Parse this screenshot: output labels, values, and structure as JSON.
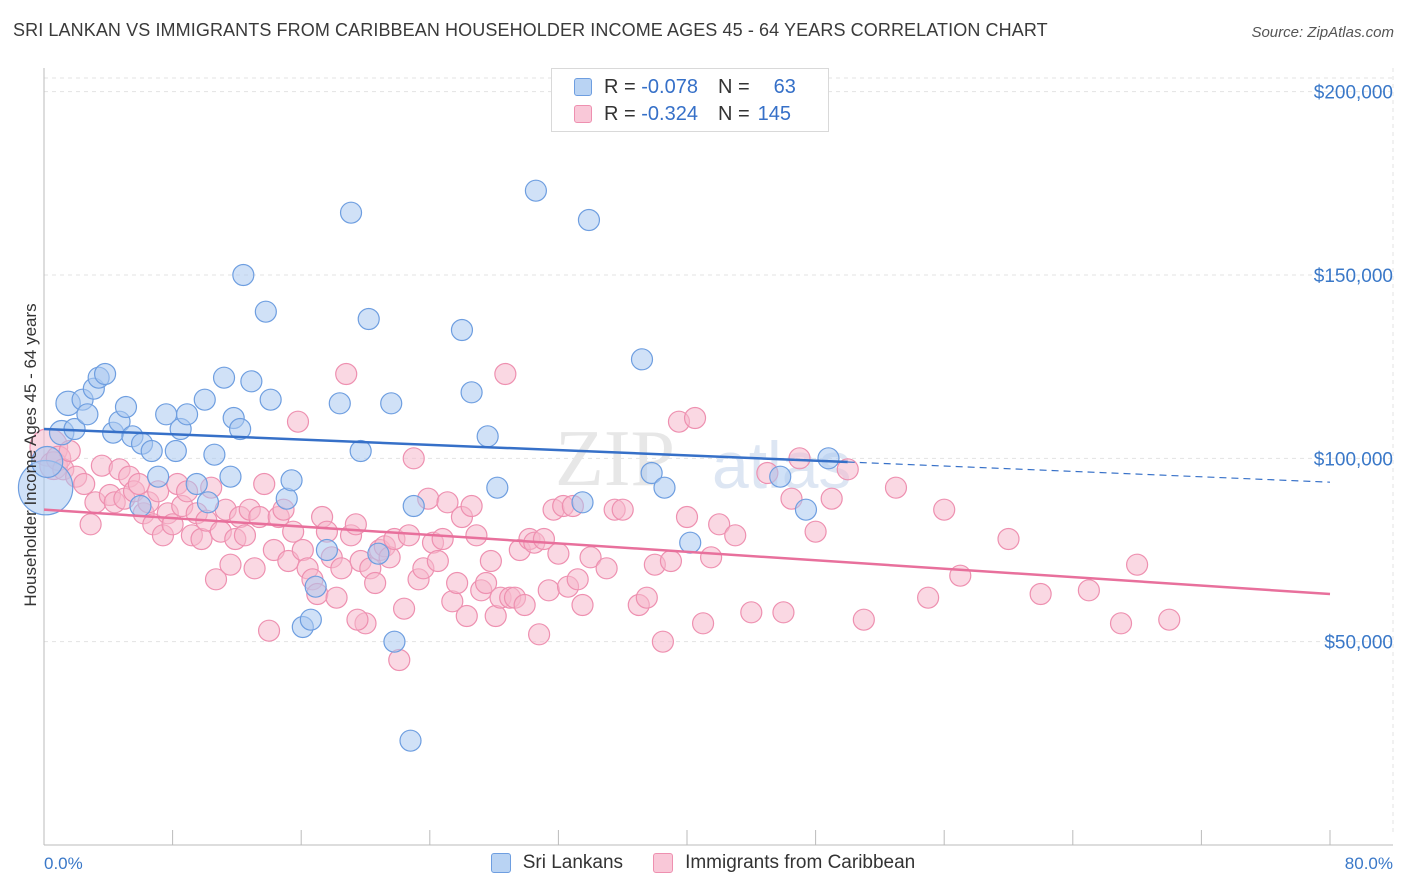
{
  "title": "SRI LANKAN VS IMMIGRANTS FROM CARIBBEAN HOUSEHOLDER INCOME AGES 45 - 64 YEARS CORRELATION CHART",
  "source": "Source: ZipAtlas.com",
  "watermark": {
    "zip": "ZIP",
    "atlas": "atlas"
  },
  "colors": {
    "blue": "#3670c8",
    "blue_fill": "#a9c8f0",
    "blue_stroke": "#6e9ee0",
    "pink": "#e8709c",
    "pink_fill": "#f6b8cc",
    "pink_stroke": "#ee90b0",
    "grid": "#e3e3e3",
    "axis_text": "#3a78c8"
  },
  "legend": {
    "rows": [
      {
        "r_label": "R =",
        "r_value": "-0.078",
        "n_label": "N =",
        "n_value": "63"
      },
      {
        "r_label": "R =",
        "r_value": "-0.324",
        "n_label": "N =",
        "n_value": "145"
      }
    ]
  },
  "bottom_legend": [
    "Sri Lankans",
    "Immigrants from Caribbean"
  ],
  "chart_data": {
    "type": "scatter",
    "title": "SRI LANKAN VS IMMIGRANTS FROM CARIBBEAN HOUSEHOLDER INCOME AGES 45 - 64 YEARS CORRELATION CHART",
    "xlabel": "",
    "ylabel": "Householder Income Ages 45 - 64 years",
    "xlim": [
      0,
      80
    ],
    "ylim": [
      0,
      210000
    ],
    "x_tick_labels": [
      "0.0%",
      "80.0%"
    ],
    "y_ticks": [
      50000,
      100000,
      150000,
      200000
    ],
    "y_tick_labels": [
      "$50,000",
      "$100,000",
      "$150,000",
      "$200,000"
    ],
    "grid": true,
    "series": [
      {
        "name": "Sri Lankans",
        "R": -0.078,
        "N": 63,
        "trend": {
          "x_start": 0,
          "y_start": 108000,
          "x_solid_end": 50,
          "y_solid_end": 99000,
          "x_end": 80,
          "y_end": 93500
        },
        "points": [
          [
            0.1,
            92000,
            32
          ],
          [
            0.2,
            99000,
            18
          ],
          [
            1.1,
            107000,
            14
          ],
          [
            1.5,
            115000,
            14
          ],
          [
            1.9,
            108000,
            12
          ],
          [
            2.4,
            116000,
            12
          ],
          [
            2.7,
            112000,
            12
          ],
          [
            3.1,
            119000,
            12
          ],
          [
            3.4,
            122000,
            12
          ],
          [
            3.8,
            123000,
            12
          ],
          [
            4.3,
            107000,
            12
          ],
          [
            4.7,
            110000,
            12
          ],
          [
            5.1,
            114000,
            12
          ],
          [
            5.5,
            106000,
            12
          ],
          [
            6.1,
            104000,
            12
          ],
          [
            6.7,
            102000,
            12
          ],
          [
            7.1,
            95000,
            12
          ],
          [
            7.6,
            112000,
            12
          ],
          [
            8.2,
            102000,
            12
          ],
          [
            8.5,
            108000,
            12
          ],
          [
            8.9,
            112000,
            12
          ],
          [
            9.5,
            93000,
            12
          ],
          [
            10.0,
            116000,
            12
          ],
          [
            10.2,
            88000,
            12
          ],
          [
            10.6,
            101000,
            12
          ],
          [
            11.2,
            122000,
            12
          ],
          [
            11.6,
            95000,
            12
          ],
          [
            11.8,
            111000,
            12
          ],
          [
            12.2,
            108000,
            12
          ],
          [
            12.4,
            150000,
            12
          ],
          [
            12.9,
            121000,
            12
          ],
          [
            13.8,
            140000,
            12
          ],
          [
            14.1,
            116000,
            12
          ],
          [
            15.1,
            89000,
            12
          ],
          [
            15.4,
            94000,
            12
          ],
          [
            16.1,
            54000,
            12
          ],
          [
            16.6,
            56000,
            12
          ],
          [
            16.9,
            65000,
            12
          ],
          [
            17.6,
            75000,
            12
          ],
          [
            18.4,
            115000,
            12
          ],
          [
            19.1,
            167000,
            12
          ],
          [
            19.7,
            102000,
            12
          ],
          [
            20.2,
            138000,
            12
          ],
          [
            20.8,
            74000,
            12
          ],
          [
            21.6,
            115000,
            12
          ],
          [
            21.8,
            50000,
            12
          ],
          [
            22.8,
            23000,
            12
          ],
          [
            23.0,
            87000,
            12
          ],
          [
            26.0,
            135000,
            12
          ],
          [
            26.6,
            118000,
            12
          ],
          [
            27.6,
            106000,
            12
          ],
          [
            28.2,
            92000,
            12
          ],
          [
            30.6,
            173000,
            12
          ],
          [
            33.9,
            165000,
            12
          ],
          [
            33.5,
            88000,
            12
          ],
          [
            37.2,
            127000,
            12
          ],
          [
            37.8,
            96000,
            12
          ],
          [
            38.6,
            92000,
            12
          ],
          [
            40.2,
            77000,
            12
          ],
          [
            45.8,
            95000,
            12
          ],
          [
            47.4,
            86000,
            12
          ],
          [
            48.8,
            100000,
            12
          ],
          [
            6.0,
            87000,
            12
          ]
        ]
      },
      {
        "name": "Immigrants from Caribbean",
        "R": -0.324,
        "N": 145,
        "trend": {
          "x_start": 0,
          "y_start": 86000,
          "x_end": 80,
          "y_end": 63000
        },
        "points": [
          [
            0.3,
            103000,
            22
          ],
          [
            0.6,
            98000,
            16
          ],
          [
            0.9,
            100000,
            14
          ],
          [
            1.2,
            97000,
            12
          ],
          [
            1.6,
            102000,
            12
          ],
          [
            2.0,
            95000,
            12
          ],
          [
            2.5,
            93000,
            12
          ],
          [
            2.9,
            82000,
            12
          ],
          [
            3.2,
            88000,
            12
          ],
          [
            3.6,
            98000,
            12
          ],
          [
            4.1,
            90000,
            12
          ],
          [
            4.4,
            88000,
            12
          ],
          [
            4.7,
            97000,
            12
          ],
          [
            5.0,
            89000,
            12
          ],
          [
            5.3,
            95000,
            12
          ],
          [
            5.6,
            91000,
            12
          ],
          [
            5.9,
            93000,
            12
          ],
          [
            6.2,
            85000,
            12
          ],
          [
            6.5,
            88000,
            12
          ],
          [
            6.8,
            82000,
            12
          ],
          [
            7.1,
            91000,
            12
          ],
          [
            7.4,
            79000,
            12
          ],
          [
            7.7,
            85000,
            12
          ],
          [
            8.0,
            82000,
            12
          ],
          [
            8.3,
            93000,
            12
          ],
          [
            8.6,
            87000,
            12
          ],
          [
            8.9,
            91000,
            12
          ],
          [
            9.2,
            79000,
            12
          ],
          [
            9.5,
            85000,
            12
          ],
          [
            9.8,
            78000,
            12
          ],
          [
            10.1,
            83000,
            12
          ],
          [
            10.4,
            92000,
            12
          ],
          [
            10.7,
            67000,
            12
          ],
          [
            11.0,
            80000,
            12
          ],
          [
            11.3,
            86000,
            12
          ],
          [
            11.6,
            71000,
            12
          ],
          [
            11.9,
            78000,
            12
          ],
          [
            12.2,
            84000,
            12
          ],
          [
            12.5,
            79000,
            12
          ],
          [
            12.8,
            86000,
            12
          ],
          [
            13.1,
            70000,
            12
          ],
          [
            13.4,
            84000,
            12
          ],
          [
            13.7,
            93000,
            12
          ],
          [
            14.0,
            53000,
            12
          ],
          [
            14.3,
            75000,
            12
          ],
          [
            14.6,
            84000,
            12
          ],
          [
            14.9,
            86000,
            12
          ],
          [
            15.2,
            72000,
            12
          ],
          [
            15.5,
            80000,
            12
          ],
          [
            15.8,
            110000,
            12
          ],
          [
            16.1,
            75000,
            12
          ],
          [
            16.4,
            70000,
            12
          ],
          [
            16.7,
            67000,
            12
          ],
          [
            17.0,
            63000,
            12
          ],
          [
            17.3,
            84000,
            12
          ],
          [
            17.6,
            80000,
            12
          ],
          [
            17.9,
            73000,
            12
          ],
          [
            18.2,
            62000,
            12
          ],
          [
            18.5,
            70000,
            12
          ],
          [
            18.8,
            123000,
            12
          ],
          [
            19.1,
            79000,
            12
          ],
          [
            19.4,
            82000,
            12
          ],
          [
            19.7,
            72000,
            12
          ],
          [
            20.0,
            55000,
            12
          ],
          [
            20.3,
            70000,
            12
          ],
          [
            20.6,
            66000,
            12
          ],
          [
            20.9,
            75000,
            12
          ],
          [
            21.2,
            76000,
            12
          ],
          [
            21.5,
            73000,
            12
          ],
          [
            21.8,
            78000,
            12
          ],
          [
            22.1,
            45000,
            12
          ],
          [
            22.4,
            59000,
            12
          ],
          [
            22.7,
            79000,
            12
          ],
          [
            23.0,
            100000,
            12
          ],
          [
            23.3,
            67000,
            12
          ],
          [
            23.6,
            70000,
            12
          ],
          [
            23.9,
            89000,
            12
          ],
          [
            24.2,
            77000,
            12
          ],
          [
            24.5,
            72000,
            12
          ],
          [
            24.8,
            78000,
            12
          ],
          [
            25.1,
            88000,
            12
          ],
          [
            25.4,
            61000,
            12
          ],
          [
            25.7,
            66000,
            12
          ],
          [
            26.0,
            84000,
            12
          ],
          [
            26.3,
            57000,
            12
          ],
          [
            26.6,
            87000,
            12
          ],
          [
            26.9,
            79000,
            12
          ],
          [
            27.2,
            64000,
            12
          ],
          [
            27.5,
            66000,
            12
          ],
          [
            27.8,
            72000,
            12
          ],
          [
            28.1,
            57000,
            12
          ],
          [
            28.4,
            62000,
            12
          ],
          [
            28.7,
            123000,
            12
          ],
          [
            29.0,
            62000,
            12
          ],
          [
            29.3,
            62000,
            12
          ],
          [
            29.6,
            75000,
            12
          ],
          [
            29.9,
            60000,
            12
          ],
          [
            30.2,
            78000,
            12
          ],
          [
            30.5,
            77000,
            12
          ],
          [
            30.8,
            52000,
            12
          ],
          [
            31.1,
            78000,
            12
          ],
          [
            31.4,
            64000,
            12
          ],
          [
            31.7,
            86000,
            12
          ],
          [
            32.0,
            74000,
            12
          ],
          [
            32.3,
            87000,
            12
          ],
          [
            32.6,
            65000,
            12
          ],
          [
            32.9,
            87000,
            12
          ],
          [
            33.2,
            67000,
            12
          ],
          [
            33.5,
            60000,
            12
          ],
          [
            34.0,
            73000,
            12
          ],
          [
            35.0,
            70000,
            12
          ],
          [
            35.5,
            86000,
            12
          ],
          [
            36.0,
            86000,
            12
          ],
          [
            37.0,
            60000,
            12
          ],
          [
            37.5,
            62000,
            12
          ],
          [
            38.0,
            71000,
            12
          ],
          [
            38.5,
            50000,
            12
          ],
          [
            39.0,
            72000,
            12
          ],
          [
            39.5,
            110000,
            12
          ],
          [
            40.0,
            84000,
            12
          ],
          [
            40.5,
            111000,
            12
          ],
          [
            41.0,
            55000,
            12
          ],
          [
            41.5,
            73000,
            12
          ],
          [
            42.0,
            82000,
            12
          ],
          [
            43.0,
            79000,
            12
          ],
          [
            44.0,
            58000,
            12
          ],
          [
            45.0,
            96000,
            12
          ],
          [
            46.0,
            58000,
            12
          ],
          [
            47.0,
            100000,
            12
          ],
          [
            48.0,
            80000,
            12
          ],
          [
            49.0,
            89000,
            12
          ],
          [
            50.0,
            97000,
            12
          ],
          [
            51.0,
            56000,
            12
          ],
          [
            53.0,
            92000,
            12
          ],
          [
            55.0,
            62000,
            12
          ],
          [
            56.0,
            86000,
            12
          ],
          [
            57.0,
            68000,
            12
          ],
          [
            60.0,
            78000,
            12
          ],
          [
            62.0,
            63000,
            12
          ],
          [
            65.0,
            64000,
            12
          ],
          [
            68.0,
            71000,
            12
          ],
          [
            70.0,
            56000,
            12
          ],
          [
            67.0,
            55000,
            12
          ],
          [
            19.5,
            56000,
            12
          ],
          [
            46.5,
            89000,
            12
          ]
        ]
      }
    ]
  }
}
